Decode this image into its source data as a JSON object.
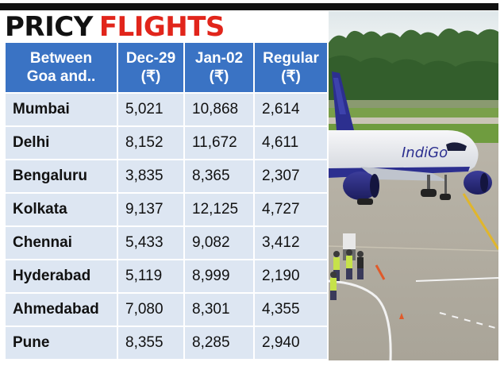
{
  "title": {
    "word1": "PRICY",
    "word2": "FLIGHTS"
  },
  "colors": {
    "header_bg": "#3a73c4",
    "row_bg": "#dde6f2",
    "title_accent": "#e1251b",
    "rule": "#111111"
  },
  "table": {
    "headers": [
      {
        "line1": "Between",
        "line2": "Goa and.."
      },
      {
        "line1": "Dec-29",
        "line2": "(₹)"
      },
      {
        "line1": "Jan-02",
        "line2": "(₹)"
      },
      {
        "line1": "Regular",
        "line2": "(₹)"
      }
    ],
    "rows": [
      [
        "Mumbai",
        "5,021",
        "10,868",
        "2,614"
      ],
      [
        "Delhi",
        "8,152",
        "11,672",
        "4,611"
      ],
      [
        "Bengaluru",
        "3,835",
        "8,365",
        "2,307"
      ],
      [
        "Kolkata",
        "9,137",
        "12,125",
        "4,727"
      ],
      [
        "Chennai",
        "5,433",
        "9,082",
        "3,412"
      ],
      [
        "Hyderabad",
        "5,119",
        "8,999",
        "2,190"
      ],
      [
        "Ahmedabad",
        "7,080",
        "8,301",
        "4,355"
      ],
      [
        "Pune",
        "8,355",
        "8,285",
        "2,940"
      ]
    ]
  },
  "photo": {
    "livery_text": "IndiGo"
  }
}
